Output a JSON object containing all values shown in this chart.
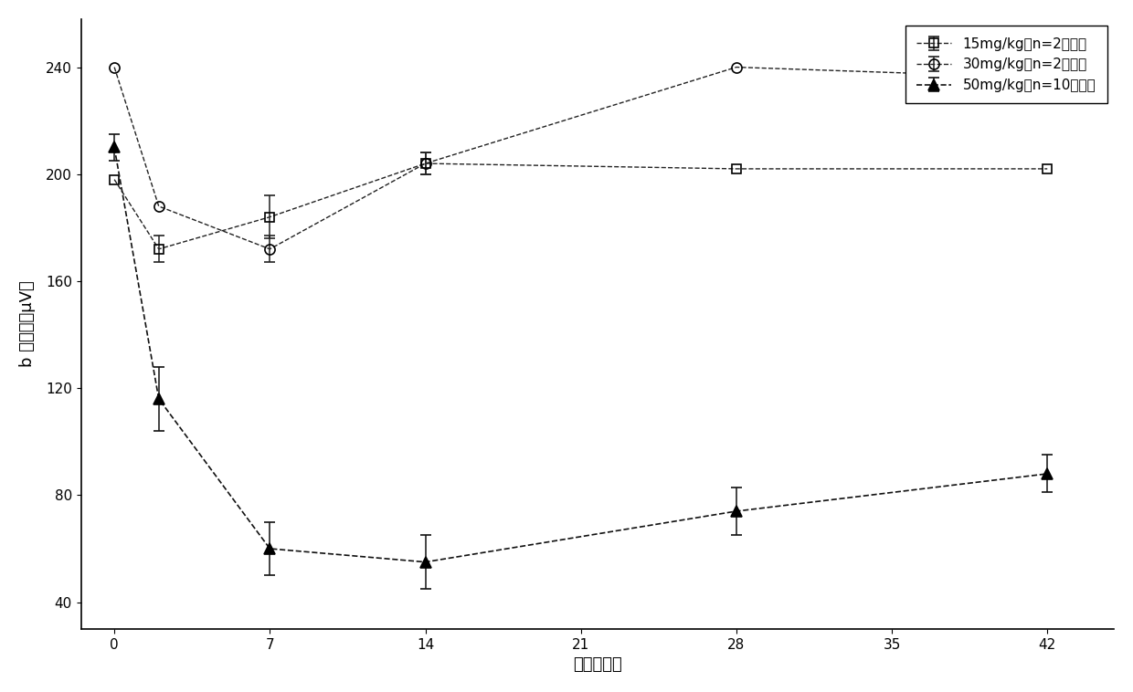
{
  "title": "",
  "xlabel": "时间（天）",
  "ylabel": "b 波波幅（μV）",
  "xticks": [
    0,
    7,
    14,
    21,
    28,
    35,
    42
  ],
  "yticks": [
    40,
    80,
    120,
    160,
    200,
    240
  ],
  "xlim": [
    -1.5,
    45
  ],
  "ylim": [
    30,
    258
  ],
  "series": [
    {
      "label": "15mg/kg（n=2只眼）",
      "x": [
        0,
        2,
        7,
        14,
        28,
        42
      ],
      "y": [
        198,
        172,
        184,
        204,
        202,
        202
      ],
      "yerr": [
        0,
        5,
        8,
        4,
        0,
        0
      ],
      "marker": "s",
      "color": "#222222",
      "fillstyle": "none",
      "markersize": 7,
      "linewidth": 1.0,
      "linestyle": "--"
    },
    {
      "label": "30mg/kg（n=2只眼）",
      "x": [
        0,
        2,
        7,
        14,
        28,
        42
      ],
      "y": [
        240,
        188,
        172,
        204,
        240,
        236
      ],
      "yerr": [
        0,
        0,
        5,
        4,
        0,
        5
      ],
      "marker": "o",
      "color": "#222222",
      "fillstyle": "none",
      "markersize": 8,
      "linewidth": 1.0,
      "linestyle": "--"
    },
    {
      "label": "50mg/kg（n=10只眼）",
      "x": [
        0,
        2,
        7,
        14,
        28,
        42
      ],
      "y": [
        210,
        116,
        60,
        55,
        74,
        88
      ],
      "yerr": [
        5,
        12,
        10,
        10,
        9,
        7
      ],
      "marker": "^",
      "color": "#111111",
      "fillstyle": "full",
      "markersize": 9,
      "linewidth": 1.2,
      "linestyle": "--"
    }
  ],
  "legend_fontsize": 11,
  "axis_fontsize": 13,
  "tick_fontsize": 11,
  "background_color": "#ffffff",
  "figure_bg": "#ffffff"
}
